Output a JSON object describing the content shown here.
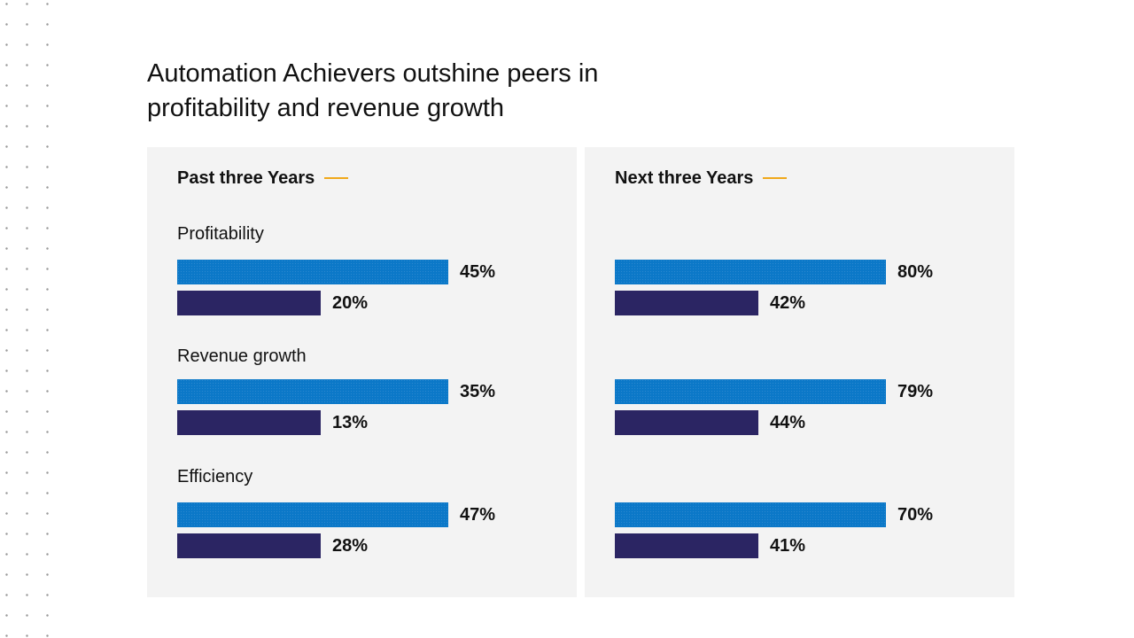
{
  "title": "Automation Achievers outshine peers in profitability and revenue growth",
  "colors": {
    "primary_bar": "#0b78c8",
    "secondary_bar": "#2b2563",
    "accent_line": "#f0a81a",
    "panel_bg": "#f3f3f3"
  },
  "chart_data": [
    {
      "type": "bar",
      "orientation": "horizontal",
      "title": "Past three Years",
      "categories": [
        "Profitability",
        "Revenue growth",
        "Efficiency"
      ],
      "series": [
        {
          "values": [
            45,
            35,
            47
          ],
          "labels": [
            "45%",
            "35%",
            "47%"
          ]
        },
        {
          "values": [
            20,
            13,
            28
          ],
          "labels": [
            "20%",
            "13%",
            "28%"
          ]
        }
      ]
    },
    {
      "type": "bar",
      "orientation": "horizontal",
      "title": "Next three Years",
      "categories": [
        "Profitability",
        "Revenue growth",
        "Efficiency"
      ],
      "show_category_labels": false,
      "series": [
        {
          "values": [
            80,
            79,
            70
          ],
          "labels": [
            "80%",
            "79%",
            "70%"
          ]
        },
        {
          "values": [
            42,
            44,
            41
          ],
          "labels": [
            "42%",
            "44%",
            "41%"
          ]
        }
      ]
    }
  ]
}
